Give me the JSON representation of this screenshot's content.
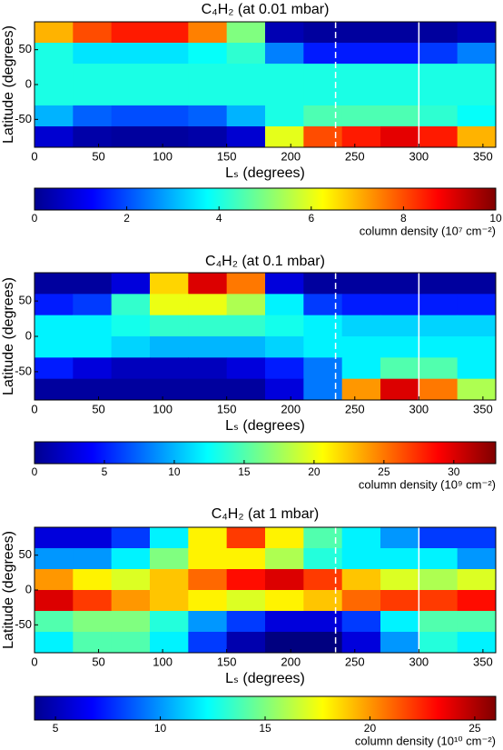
{
  "chart_data": [
    {
      "type": "heatmap",
      "title": "C₄H₂ (at 0.01 mbar)",
      "xlabel": "Lₛ (degrees)",
      "ylabel": "Latitude (degrees)",
      "xlim": [
        0,
        360
      ],
      "xticks": [
        0,
        50,
        100,
        150,
        200,
        250,
        300,
        350
      ],
      "ylim": [
        -90,
        90
      ],
      "yticks": [
        -50,
        0,
        50
      ],
      "x": [
        15,
        45,
        75,
        105,
        135,
        165,
        195,
        225,
        255,
        285,
        315,
        345
      ],
      "y": [
        75,
        45,
        15,
        -15,
        -45,
        -75
      ],
      "z": [
        [
          7,
          8,
          8.5,
          8.5,
          7.5,
          5,
          0.5,
          0.3,
          0.3,
          0.3,
          0.3,
          0.5
        ],
        [
          4,
          3.5,
          3.5,
          3.5,
          3.8,
          4.2,
          2.5,
          1.5,
          1.5,
          1.5,
          1.8,
          2.5
        ],
        [
          4,
          4,
          4,
          4,
          4,
          4,
          4,
          4,
          4,
          4,
          4,
          4
        ],
        [
          4,
          4,
          4,
          4,
          4,
          4,
          4,
          4,
          4,
          4,
          4,
          4
        ],
        [
          3,
          2.2,
          2,
          2,
          2.2,
          3,
          4,
          4.5,
          4.5,
          4.5,
          4.2,
          3.8
        ],
        [
          0.8,
          0.4,
          0.3,
          0.3,
          0.4,
          0.8,
          6,
          8,
          8.5,
          9,
          8.5,
          7
        ]
      ],
      "clim": [
        0,
        10
      ],
      "cticks": [
        0,
        2,
        4,
        6,
        8,
        10
      ],
      "colorbar_label": "column density (10⁷ cm⁻²)",
      "colormap": "jet",
      "vlines": [
        235,
        300
      ],
      "vline_styles": [
        "dashed",
        "solid"
      ]
    },
    {
      "type": "heatmap",
      "title": "C₄H₂ (at 0.1 mbar)",
      "xlabel": "Lₛ (degrees)",
      "ylabel": "Latitude (degrees)",
      "xlim": [
        0,
        360
      ],
      "xticks": [
        0,
        50,
        100,
        150,
        200,
        250,
        300,
        350
      ],
      "ylim": [
        -90,
        90
      ],
      "yticks": [
        -50,
        0,
        50
      ],
      "x": [
        15,
        45,
        75,
        105,
        135,
        165,
        195,
        225,
        255,
        285,
        315,
        345
      ],
      "y": [
        75,
        45,
        15,
        -15,
        -45,
        -75
      ],
      "z": [
        [
          1,
          1,
          3,
          22,
          30,
          25,
          3,
          1,
          1,
          1,
          1,
          1
        ],
        [
          5,
          6,
          14,
          20,
          20,
          18,
          12,
          6,
          5,
          5,
          5,
          5
        ],
        [
          12,
          12,
          13,
          14,
          14,
          14,
          13,
          12,
          11,
          11,
          11,
          11
        ],
        [
          12,
          12,
          11,
          10,
          10,
          10,
          11,
          12,
          12,
          12,
          12,
          12
        ],
        [
          5,
          3,
          2,
          2,
          2,
          3,
          5,
          8,
          12,
          15,
          15,
          12
        ],
        [
          1,
          1,
          1,
          1,
          1,
          1,
          3,
          8,
          24,
          30,
          25,
          18
        ]
      ],
      "clim": [
        0,
        33
      ],
      "cticks": [
        0,
        5,
        10,
        15,
        20,
        25,
        30
      ],
      "colorbar_label": "column density (10⁹ cm⁻²)",
      "colormap": "jet",
      "vlines": [
        235,
        300
      ],
      "vline_styles": [
        "dashed",
        "solid"
      ]
    },
    {
      "type": "heatmap",
      "title": "C₄H₂ (at 1 mbar)",
      "xlabel": "Lₛ (degrees)",
      "ylabel": "Latitude (degrees)",
      "xlim": [
        0,
        360
      ],
      "xticks": [
        0,
        50,
        100,
        150,
        200,
        250,
        300,
        350
      ],
      "ylim": [
        -90,
        90
      ],
      "yticks": [
        -50,
        0,
        50
      ],
      "x": [
        15,
        45,
        75,
        105,
        135,
        165,
        195,
        225,
        255,
        285,
        315,
        345
      ],
      "y": [
        75,
        45,
        15,
        -15,
        -45,
        -75
      ],
      "z": [
        [
          6,
          6,
          8,
          12,
          18,
          22,
          18,
          14,
          12,
          10,
          8,
          8
        ],
        [
          10,
          10,
          12,
          15,
          18,
          18,
          16,
          13,
          12,
          12,
          12,
          10
        ],
        [
          20,
          18,
          17,
          19,
          21,
          23,
          24,
          22,
          19,
          17,
          16,
          17
        ],
        [
          24,
          22,
          20,
          19,
          18,
          17,
          18,
          19,
          21,
          22,
          22,
          23
        ],
        [
          14,
          15,
          15,
          13,
          10,
          8,
          6,
          6,
          8,
          12,
          14,
          14
        ],
        [
          12,
          14,
          14,
          12,
          8,
          5,
          4,
          4,
          6,
          10,
          13,
          12
        ]
      ],
      "clim": [
        4,
        26
      ],
      "cticks": [
        5,
        10,
        15,
        20,
        25
      ],
      "colorbar_label": "column density (10¹⁰ cm⁻²)",
      "colormap": "jet",
      "vlines": [
        235,
        300
      ],
      "vline_styles": [
        "dashed",
        "solid"
      ]
    }
  ]
}
